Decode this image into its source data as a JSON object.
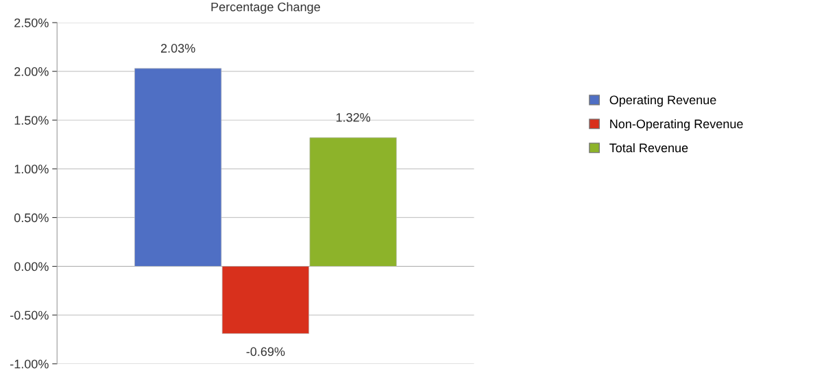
{
  "chart_data": {
    "type": "bar",
    "title": "Percentage Change",
    "categories": [
      null
    ],
    "series": [
      {
        "name": "Operating Revenue",
        "color": "#4f6fc4",
        "values": [
          2.03
        ],
        "value_labels": [
          "2.03%"
        ]
      },
      {
        "name": "Non-Operating Revenue",
        "color": "#d8301c",
        "values": [
          -0.69
        ],
        "value_labels": [
          "-0.69%"
        ]
      },
      {
        "name": "Total Revenue",
        "color": "#8db32a",
        "values": [
          1.32
        ],
        "value_labels": [
          "1.32%"
        ]
      }
    ],
    "ylim": [
      -1.0,
      2.5
    ],
    "yticks": [
      {
        "value": -1.0,
        "label": "-1.00%"
      },
      {
        "value": -0.5,
        "label": "-0.50%"
      },
      {
        "value": 0.0,
        "label": "0.00%"
      },
      {
        "value": 0.5,
        "label": "0.50%"
      },
      {
        "value": 1.0,
        "label": "1.00%"
      },
      {
        "value": 1.5,
        "label": "1.50%"
      },
      {
        "value": 2.0,
        "label": "2.00%"
      },
      {
        "value": 2.5,
        "label": "2.50%"
      }
    ],
    "grid": "y",
    "legend": "right",
    "tick_labels": "y"
  }
}
